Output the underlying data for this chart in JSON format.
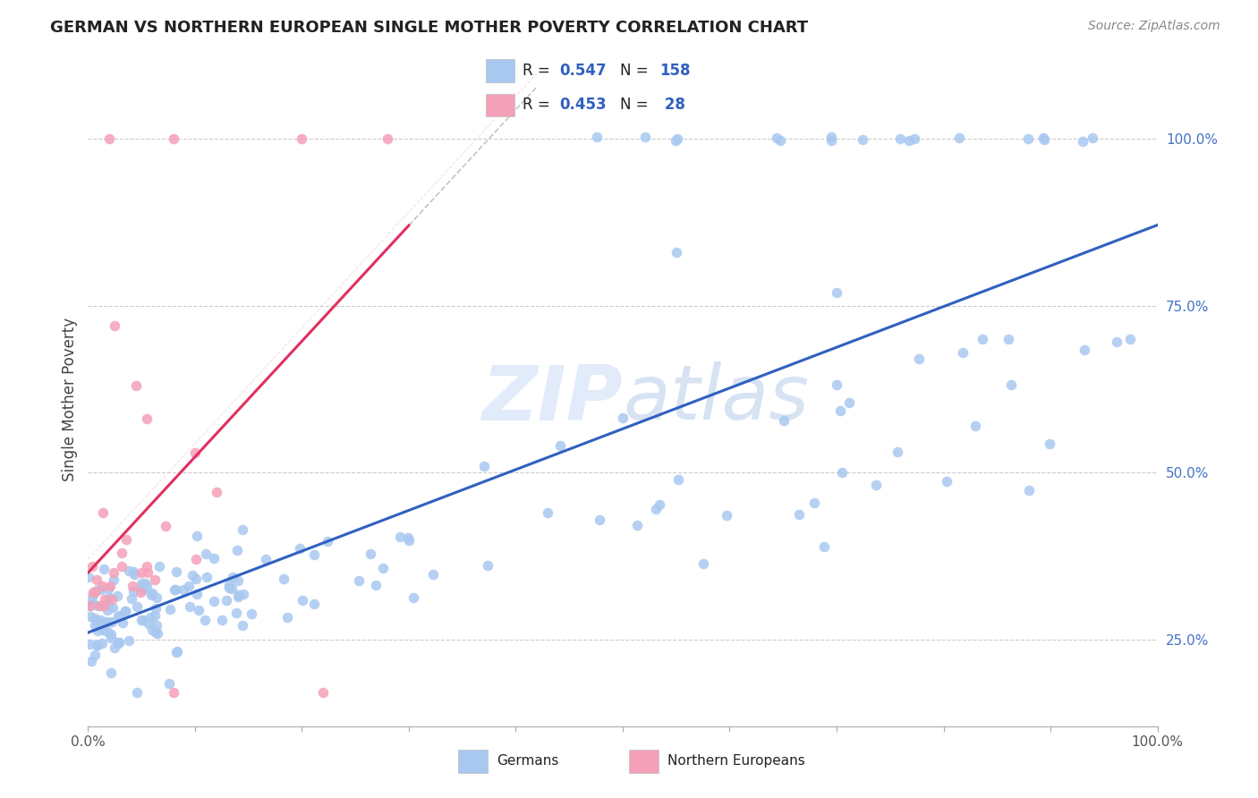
{
  "title": "GERMAN VS NORTHERN EUROPEAN SINGLE MOTHER POVERTY CORRELATION CHART",
  "source": "Source: ZipAtlas.com",
  "ylabel": "Single Mother Poverty",
  "xlim": [
    0.0,
    1.0
  ],
  "ylim": [
    0.12,
    1.1
  ],
  "german_color": "#a8c8f0",
  "northern_color": "#f4a0b8",
  "german_line_color": "#3060c0",
  "northern_line_color": "#e03060",
  "northern_ci_color": "#f0b0c0",
  "german_R": 0.547,
  "german_N": 158,
  "northern_R": 0.453,
  "northern_N": 28,
  "watermark": "ZIPatlas",
  "background_color": "#ffffff",
  "grid_color": "#cccccc"
}
